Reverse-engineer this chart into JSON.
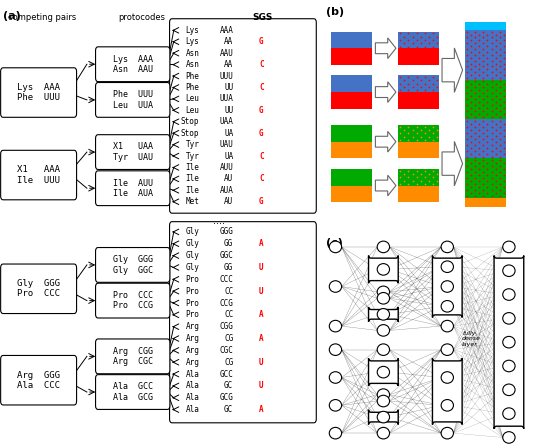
{
  "colors": {
    "blue": "#4472C4",
    "red": "#FF0000",
    "green": "#00AA00",
    "orange": "#FF8C00",
    "cyan": "#00BFFF",
    "red_text": "#FF0000"
  },
  "sgs_top": [
    [
      "Lys",
      "AAA",
      ""
    ],
    [
      "Lys",
      "AA",
      "G"
    ],
    [
      "Asn",
      "AAU",
      ""
    ],
    [
      "Asn",
      "AA",
      "C"
    ],
    [
      "Phe",
      "UUU",
      ""
    ],
    [
      "Phe",
      "UU",
      "C"
    ],
    [
      "Leu",
      "UUA",
      ""
    ],
    [
      "Leu",
      "UU",
      "G"
    ],
    [
      "Stop",
      "UAA",
      ""
    ],
    [
      "Stop",
      "UA",
      "G"
    ],
    [
      "Tyr",
      "UAU",
      ""
    ],
    [
      "Tyr",
      "UA",
      "C"
    ],
    [
      "Ile",
      "AUU",
      ""
    ],
    [
      "Ile",
      "AU",
      "C"
    ],
    [
      "Ile",
      "AUA",
      ""
    ],
    [
      "Met",
      "AU",
      "G"
    ]
  ],
  "sgs_bottom": [
    [
      "Gly",
      "GGG",
      ""
    ],
    [
      "Gly",
      "GG",
      "A"
    ],
    [
      "Gly",
      "GGC",
      ""
    ],
    [
      "Gly",
      "GG",
      "U"
    ],
    [
      "Pro",
      "CCC",
      ""
    ],
    [
      "Pro",
      "CC",
      "U"
    ],
    [
      "Pro",
      "CCG",
      ""
    ],
    [
      "Pro",
      "CC",
      "A"
    ],
    [
      "Arg",
      "CGG",
      ""
    ],
    [
      "Arg",
      "CG",
      "A"
    ],
    [
      "Arg",
      "CGC",
      ""
    ],
    [
      "Arg",
      "CG",
      "U"
    ],
    [
      "Ala",
      "GCC",
      ""
    ],
    [
      "Ala",
      "GC",
      "U"
    ],
    [
      "Ala",
      "GCG",
      ""
    ],
    [
      "Ala",
      "GC",
      "A"
    ]
  ]
}
